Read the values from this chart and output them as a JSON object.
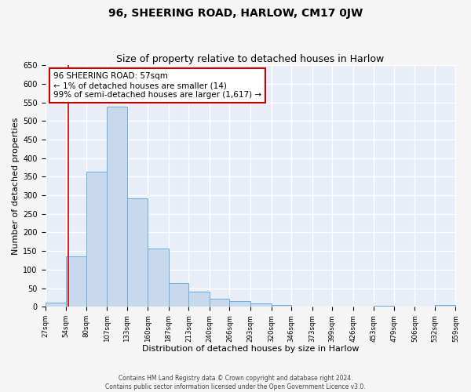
{
  "title": "96, SHEERING ROAD, HARLOW, CM17 0JW",
  "subtitle": "Size of property relative to detached houses in Harlow",
  "xlabel": "Distribution of detached houses by size in Harlow",
  "ylabel": "Number of detached properties",
  "bin_edges": [
    27,
    54,
    80,
    107,
    133,
    160,
    187,
    213,
    240,
    266,
    293,
    320,
    346,
    373,
    399,
    426,
    453,
    479,
    506,
    532,
    559
  ],
  "bin_counts": [
    10,
    135,
    363,
    538,
    291,
    157,
    64,
    40,
    21,
    15,
    9,
    4,
    1,
    0,
    0,
    0,
    3,
    0,
    0,
    4
  ],
  "bar_fill_color": "#c8d9ee",
  "bar_edge_color": "#6aaed6",
  "property_line_x": 57,
  "property_line_color": "#cc0000",
  "annotation_text": "96 SHEERING ROAD: 57sqm\n← 1% of detached houses are smaller (14)\n99% of semi-detached houses are larger (1,617) →",
  "annotation_box_color": "#ffffff",
  "annotation_box_edge": "#cc0000",
  "ylim": [
    0,
    650
  ],
  "yticks": [
    0,
    50,
    100,
    150,
    200,
    250,
    300,
    350,
    400,
    450,
    500,
    550,
    600,
    650
  ],
  "footer_line1": "Contains HM Land Registry data © Crown copyright and database right 2024.",
  "footer_line2": "Contains public sector information licensed under the Open Government Licence v3.0.",
  "plot_bg_color": "#e8eef7",
  "fig_bg_color": "#f5f5f5",
  "grid_color": "#ffffff"
}
